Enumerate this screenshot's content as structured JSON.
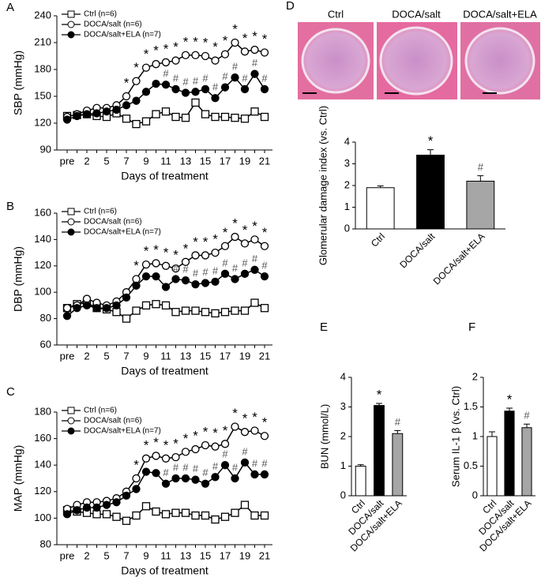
{
  "chart_data": [
    {
      "type": "line",
      "panel": "A",
      "y_label": "SBP (mmHg)",
      "x_label": "Days of treatment",
      "legend": "upper left",
      "categories": [
        "pre",
        null,
        "2",
        null,
        "5",
        null,
        "7",
        null,
        "9",
        null,
        "11",
        null,
        "13",
        null,
        "15",
        null,
        "17",
        null,
        "19",
        null,
        "21"
      ],
      "ylim": [
        90,
        240
      ],
      "yticks": [
        90,
        120,
        150,
        180,
        210,
        240
      ],
      "series": [
        {
          "name": "Ctrl (n=6)",
          "color": "#000000",
          "marker": "square-open",
          "values": [
            128,
            129,
            130,
            128,
            127,
            131,
            125,
            119,
            122,
            130,
            133,
            127,
            126,
            143,
            130,
            127,
            127,
            126,
            125,
            133,
            127
          ],
          "annotations": [
            null,
            null,
            null,
            null,
            null,
            null,
            null,
            null,
            null,
            null,
            null,
            null,
            null,
            null,
            null,
            null,
            null,
            null,
            null,
            null,
            null
          ]
        },
        {
          "name": "DOCA/salt (n=6)",
          "color": "#000000",
          "marker": "circle-open",
          "values": [
            127,
            130,
            134,
            137,
            137,
            140,
            150,
            167,
            182,
            186,
            188,
            190,
            196,
            196,
            195,
            190,
            197,
            210,
            200,
            202,
            199
          ],
          "annotations": [
            null,
            null,
            null,
            null,
            null,
            null,
            "*",
            "*",
            "*",
            "*",
            "*",
            "*",
            "*",
            "*",
            "*",
            "*",
            "*",
            "*",
            "*",
            "*",
            "*"
          ]
        },
        {
          "name": "DOCA/salt+ELA (n=7)",
          "color": "#000000",
          "marker": "circle-filled",
          "values": [
            124,
            128,
            130,
            131,
            133,
            135,
            140,
            145,
            155,
            164,
            163,
            158,
            154,
            155,
            158,
            148,
            160,
            171,
            158,
            175,
            158
          ],
          "annotations": [
            null,
            null,
            null,
            null,
            null,
            null,
            null,
            null,
            null,
            null,
            "#",
            "#",
            "#",
            "#",
            "#",
            "#",
            "#",
            "#",
            "#",
            "#",
            "#"
          ]
        }
      ]
    },
    {
      "type": "line",
      "panel": "B",
      "y_label": "DBP (mmHg)",
      "x_label": "Days of treatment",
      "legend": "upper left",
      "categories": [
        "pre",
        null,
        "2",
        null,
        "5",
        null,
        "7",
        null,
        "9",
        null,
        "11",
        null,
        "13",
        null,
        "15",
        null,
        "17",
        null,
        "19",
        null,
        "21"
      ],
      "ylim": [
        60,
        160
      ],
      "yticks": [
        60,
        80,
        100,
        120,
        140,
        160
      ],
      "series": [
        {
          "name": "Ctrl (n=6)",
          "color": "#000000",
          "marker": "square-open",
          "values": [
            88,
            91,
            92,
            88,
            87,
            85,
            80,
            86,
            90,
            91,
            90,
            85,
            86,
            86,
            85,
            84,
            85,
            86,
            86,
            92,
            88
          ],
          "annotations": [
            null,
            null,
            null,
            null,
            null,
            null,
            null,
            null,
            null,
            null,
            null,
            null,
            null,
            null,
            null,
            null,
            null,
            null,
            null,
            null,
            null
          ]
        },
        {
          "name": "DOCA/salt (n=6)",
          "color": "#000000",
          "marker": "circle-open",
          "values": [
            88,
            90,
            95,
            92,
            90,
            93,
            100,
            110,
            121,
            122,
            120,
            118,
            123,
            128,
            128,
            130,
            135,
            142,
            137,
            140,
            135
          ],
          "annotations": [
            null,
            null,
            null,
            null,
            null,
            null,
            null,
            "*",
            "*",
            "*",
            "*",
            "*",
            "*",
            "*",
            "*",
            "*",
            "*",
            "*",
            "*",
            "*",
            "*"
          ]
        },
        {
          "name": "DOCA/salt+ELA (n=7)",
          "color": "#000000",
          "marker": "circle-filled",
          "values": [
            82,
            88,
            90,
            88,
            88,
            90,
            96,
            105,
            112,
            112,
            104,
            110,
            109,
            106,
            107,
            108,
            114,
            110,
            114,
            117,
            112
          ],
          "annotations": [
            null,
            null,
            null,
            null,
            null,
            null,
            null,
            null,
            null,
            null,
            null,
            "#",
            "#",
            "#",
            "#",
            "#",
            "#",
            "#",
            "#",
            "#",
            "#"
          ]
        }
      ]
    },
    {
      "type": "line",
      "panel": "C",
      "y_label": "MAP (mmHg)",
      "x_label": "Days of treatment",
      "legend": "upper left",
      "categories": [
        "pre",
        null,
        "2",
        null,
        "5",
        null,
        "7",
        null,
        "9",
        null,
        "11",
        null,
        "13",
        null,
        "15",
        null,
        "17",
        null,
        "19",
        null,
        "21"
      ],
      "ylim": [
        80,
        180
      ],
      "yticks": [
        80,
        100,
        120,
        140,
        160,
        180
      ],
      "series": [
        {
          "name": "Ctrl (n=6)",
          "color": "#000000",
          "marker": "square-open",
          "values": [
            106,
            105,
            104,
            103,
            103,
            101,
            98,
            102,
            109,
            105,
            103,
            104,
            104,
            102,
            102,
            99,
            101,
            104,
            110,
            102,
            102
          ],
          "annotations": [
            null,
            null,
            null,
            null,
            null,
            null,
            null,
            null,
            null,
            null,
            null,
            null,
            null,
            null,
            null,
            null,
            null,
            null,
            null,
            null,
            null
          ]
        },
        {
          "name": "DOCA/salt (n=6)",
          "color": "#000000",
          "marker": "circle-open",
          "values": [
            107,
            110,
            112,
            112,
            113,
            115,
            120,
            130,
            145,
            147,
            145,
            146,
            150,
            152,
            155,
            154,
            156,
            169,
            165,
            166,
            162
          ],
          "annotations": [
            null,
            null,
            null,
            null,
            null,
            null,
            null,
            "*",
            "*",
            "*",
            "*",
            "*",
            "*",
            "*",
            "*",
            "*",
            "*",
            "*",
            "*",
            "*",
            "*"
          ]
        },
        {
          "name": "DOCA/salt+ELA (n=7)",
          "color": "#000000",
          "marker": "circle-filled",
          "values": [
            103,
            106,
            108,
            108,
            110,
            112,
            117,
            122,
            135,
            134,
            126,
            130,
            130,
            129,
            126,
            131,
            140,
            130,
            142,
            133,
            133
          ],
          "annotations": [
            null,
            null,
            null,
            null,
            null,
            null,
            null,
            null,
            null,
            null,
            "#",
            "#",
            "#",
            "#",
            "#",
            "#",
            "#",
            "#",
            "#",
            "#",
            "#"
          ]
        }
      ]
    },
    {
      "type": "bar",
      "panel": "D",
      "image_labels": [
        "Ctrl",
        "DOCA/salt",
        "DOCA/salt+ELA"
      ],
      "y_label": "Glomerular damage index (vs. Ctrl)",
      "categories": [
        "Ctrl",
        "DOCA/salt",
        "DOCA/salt+ELA"
      ],
      "values": [
        1.9,
        3.4,
        2.2
      ],
      "errors": [
        0.08,
        0.25,
        0.25
      ],
      "colors": [
        "#ffffff",
        "#000000",
        "#a6a6a6"
      ],
      "annotations": [
        null,
        "*",
        "#"
      ],
      "ylim": [
        0,
        4
      ],
      "yticks": [
        0,
        1,
        2,
        3,
        4
      ]
    },
    {
      "type": "bar",
      "panel": "E",
      "y_label": "BUN  (mmol/L)",
      "categories": [
        "Ctrl",
        "DOCA/salt",
        "DOCA/salt+ELA"
      ],
      "values": [
        1.0,
        3.05,
        2.1
      ],
      "errors": [
        0.05,
        0.07,
        0.1
      ],
      "colors": [
        "#ffffff",
        "#000000",
        "#a6a6a6"
      ],
      "annotations": [
        null,
        "*",
        "#"
      ],
      "ylim": [
        0,
        4
      ],
      "yticks": [
        0,
        1,
        2,
        3,
        4
      ]
    },
    {
      "type": "bar",
      "panel": "F",
      "y_label": "Serum IL-1 β (vs. Ctrl)",
      "categories": [
        "Ctrl",
        "DOCA/salt",
        "DOCA/salt+ELA"
      ],
      "values": [
        1.0,
        1.43,
        1.15
      ],
      "errors": [
        0.08,
        0.05,
        0.06
      ],
      "colors": [
        "#ffffff",
        "#000000",
        "#a6a6a6"
      ],
      "annotations": [
        null,
        "*",
        "#"
      ],
      "ylim": [
        0,
        2
      ],
      "yticks": [
        0,
        0.5,
        1,
        1.5,
        2
      ]
    }
  ]
}
